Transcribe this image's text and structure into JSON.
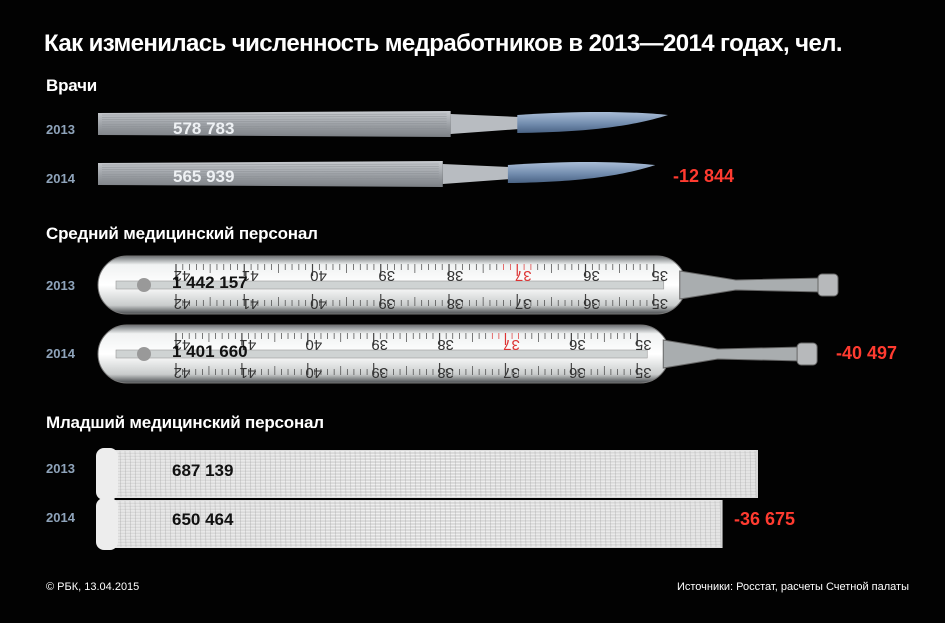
{
  "title": "Как изменилась численность медработников в 2013—2014 годах, чел.",
  "colors": {
    "background": "#020202",
    "year_label": "#8fa4bb",
    "delta": "#ff3b30"
  },
  "chart_data": {
    "type": "bar",
    "categories": [
      "Врачи",
      "Средний медицинский персонал",
      "Младший медицинский персонал"
    ],
    "years": [
      "2013",
      "2014"
    ],
    "groups": [
      {
        "name": "Врачи",
        "icon": "scalpel-icon",
        "values": [
          578783,
          565939
        ],
        "value_labels": [
          "578 783",
          "565 939"
        ],
        "change": -12844,
        "change_label": "-12 844"
      },
      {
        "name": "Средний медицинский персонал",
        "icon": "thermometer-icon",
        "values": [
          1442157,
          1401660
        ],
        "value_labels": [
          "1 442 157",
          "1 401 660"
        ],
        "change": -40497,
        "change_label": "-40 497"
      },
      {
        "name": "Младший медицинский персонал",
        "icon": "bandage-icon",
        "values": [
          687139,
          650464
        ],
        "value_labels": [
          "687 139",
          "650 464"
        ],
        "change": -36675,
        "change_label": "-36 675"
      }
    ]
  },
  "thermometer_scale": [
    "42",
    "41",
    "40",
    "39",
    "38",
    "37",
    "36",
    "35"
  ],
  "footer": {
    "left": "© РБК, 13.04.2015",
    "right": "Источники: Росстат, расчеты Счетной палаты"
  }
}
